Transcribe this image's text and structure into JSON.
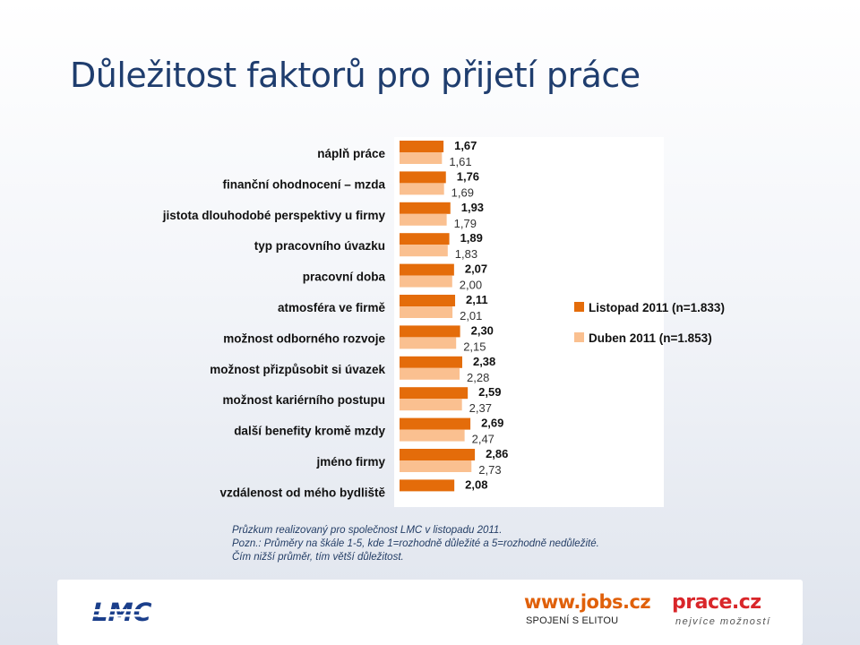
{
  "slide": {
    "title": "Důležitost faktorů pro přijetí práce"
  },
  "chart_data": {
    "type": "bar",
    "orientation": "horizontal",
    "categories": [
      "náplň práce",
      "finanční ohodnocení – mzda",
      "jistota dlouhodobé perspektivy u firmy",
      "typ pracovního úvazku",
      "pracovní doba",
      "atmosféra ve firmě",
      "možnost odborného rozvoje",
      "možnost přizpůsobit si úvazek",
      "možnost kariérního postupu",
      "další benefity kromě mzdy",
      "jméno firmy",
      "vzdálenost od mého bydliště"
    ],
    "series": [
      {
        "name": "Listopad 2011 (n=1.833)",
        "color": "#e46c0a",
        "values": [
          1.67,
          1.76,
          1.93,
          1.89,
          2.07,
          2.11,
          2.3,
          2.38,
          2.59,
          2.69,
          2.86,
          2.08
        ],
        "labels": [
          "1,67",
          "1,76",
          "1,93",
          "1,89",
          "2,07",
          "2,11",
          "2,30",
          "2,38",
          "2,59",
          "2,69",
          "2,86",
          "2,08"
        ]
      },
      {
        "name": "Duben 2011 (n=1.853)",
        "color": "#fac090",
        "values": [
          1.61,
          1.69,
          1.79,
          1.83,
          2.0,
          2.01,
          2.15,
          2.28,
          2.37,
          2.47,
          2.73,
          null
        ],
        "labels": [
          "1,61",
          "1,69",
          "1,79",
          "1,83",
          "2,00",
          "2,01",
          "2,15",
          "2,28",
          "2,37",
          "2,47",
          "2,73",
          ""
        ]
      }
    ],
    "legend_position": "right",
    "grid": false
  },
  "notes": {
    "line1": "Průzkum realizovaný pro společnost LMC v listopadu 2011.",
    "line2": "Pozn.: Průměry na škále 1-5, kde 1=rozhodně důležité a 5=rozhodně nedůležité.",
    "line3": "Čím nižší průměr, tím větší důležitost."
  },
  "logos": {
    "lmc": "LMC",
    "jobs_word": "www.jobs.cz",
    "jobs_tagline": "SPOJENÍ S ELITOU",
    "prace_word": "prace.cz",
    "prace_tagline": "nejvíce možností"
  }
}
